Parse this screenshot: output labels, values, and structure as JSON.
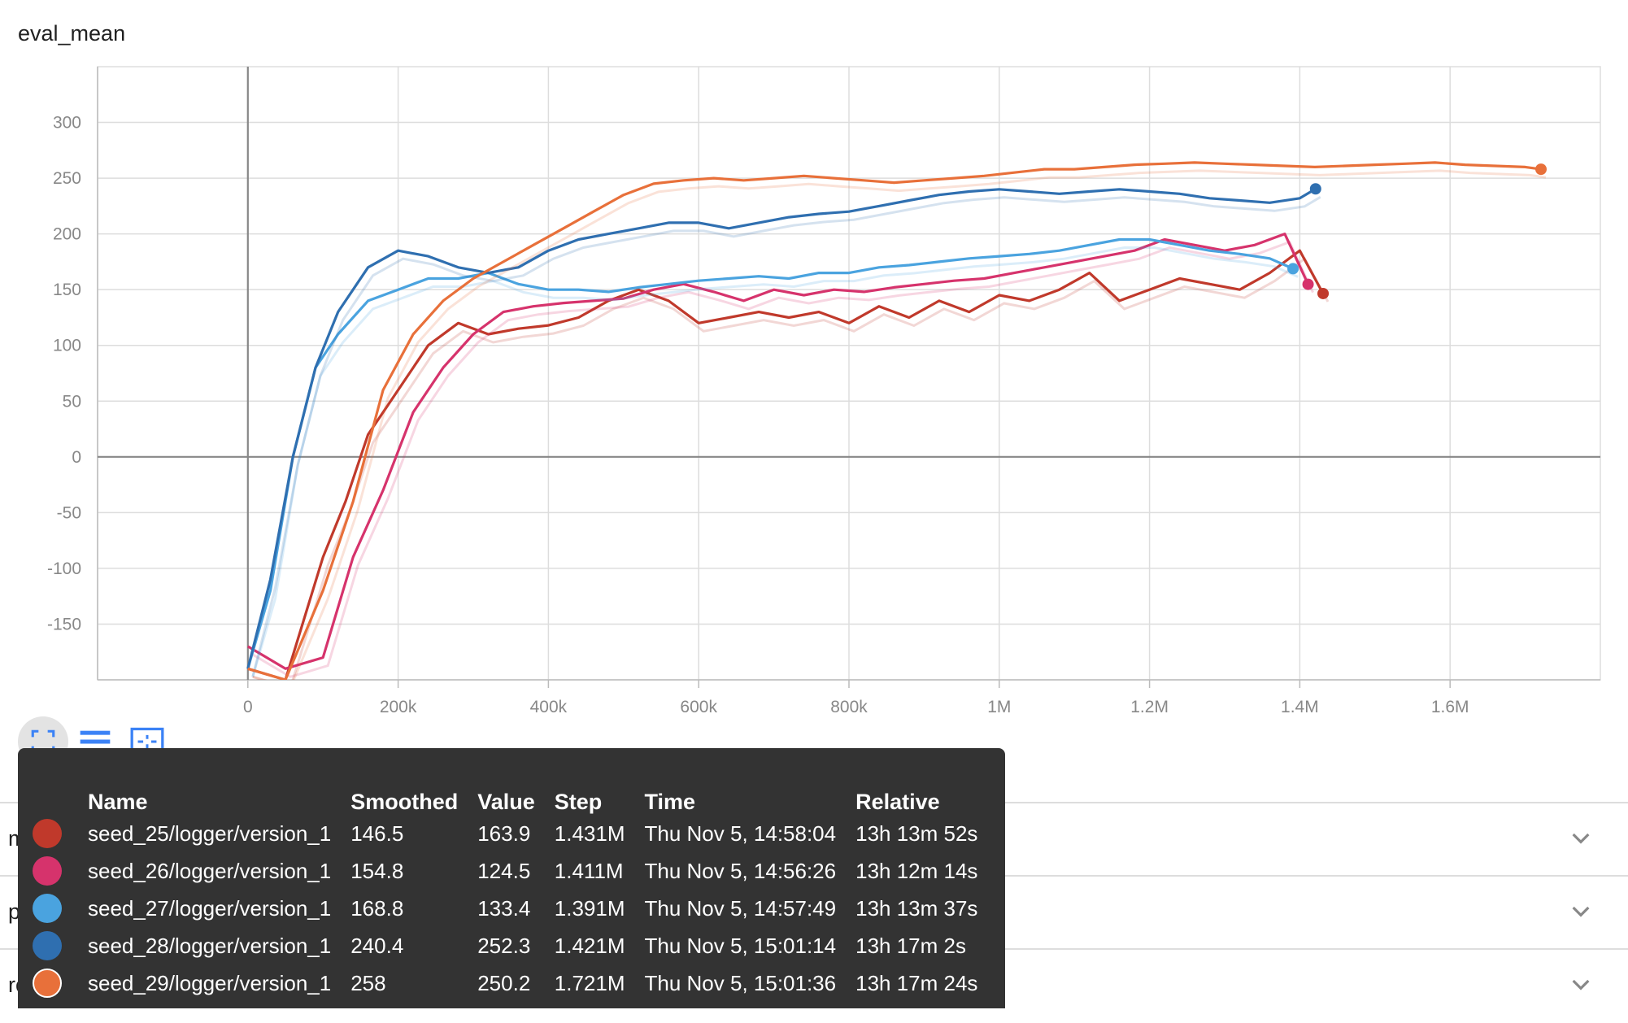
{
  "chart_data": {
    "type": "line",
    "title": "eval_mean",
    "xlabel": "",
    "ylabel": "",
    "xlim": [
      -200000,
      1800000
    ],
    "ylim": [
      -200,
      350
    ],
    "x_ticks": [
      0,
      200000,
      400000,
      600000,
      800000,
      1000000,
      1200000,
      1400000,
      1600000
    ],
    "x_tick_labels": [
      "0",
      "200k",
      "400k",
      "600k",
      "800k",
      "1M",
      "1.2M",
      "1.4M",
      "1.6M"
    ],
    "y_ticks": [
      -150,
      -100,
      -50,
      0,
      50,
      100,
      150,
      200,
      250,
      300
    ],
    "y_tick_labels": [
      "-150",
      "-100",
      "-50",
      "0",
      "50",
      "100",
      "150",
      "200",
      "250",
      "300"
    ],
    "grid": true,
    "series": [
      {
        "name": "seed_25/logger/version_1",
        "color": "#c0392b",
        "end_step": 1431000,
        "end_smoothed": 146.5,
        "x": [
          0,
          50000,
          100000,
          130000,
          160000,
          200000,
          240000,
          280000,
          320000,
          360000,
          400000,
          440000,
          480000,
          520000,
          560000,
          600000,
          640000,
          680000,
          720000,
          760000,
          800000,
          840000,
          880000,
          920000,
          960000,
          1000000,
          1040000,
          1080000,
          1120000,
          1160000,
          1200000,
          1240000,
          1280000,
          1320000,
          1360000,
          1400000,
          1431000
        ],
        "y": [
          -190,
          -200,
          -90,
          -40,
          20,
          60,
          100,
          120,
          110,
          115,
          118,
          125,
          140,
          150,
          140,
          120,
          125,
          130,
          125,
          130,
          120,
          135,
          125,
          140,
          130,
          145,
          140,
          150,
          165,
          140,
          150,
          160,
          155,
          150,
          165,
          185,
          146.5
        ]
      },
      {
        "name": "seed_26/logger/version_1",
        "color": "#d6336c",
        "end_step": 1411000,
        "end_smoothed": 154.8,
        "x": [
          0,
          50000,
          100000,
          140000,
          180000,
          220000,
          260000,
          300000,
          340000,
          380000,
          420000,
          460000,
          500000,
          540000,
          580000,
          620000,
          660000,
          700000,
          740000,
          780000,
          820000,
          860000,
          900000,
          940000,
          980000,
          1020000,
          1060000,
          1100000,
          1140000,
          1180000,
          1220000,
          1260000,
          1300000,
          1340000,
          1380000,
          1411000
        ],
        "y": [
          -170,
          -190,
          -180,
          -90,
          -30,
          40,
          80,
          110,
          130,
          135,
          138,
          140,
          142,
          150,
          155,
          148,
          140,
          150,
          145,
          150,
          148,
          152,
          155,
          158,
          160,
          165,
          170,
          175,
          180,
          185,
          195,
          190,
          185,
          190,
          200,
          154.8
        ]
      },
      {
        "name": "seed_27/logger/version_1",
        "color": "#4aa3df",
        "end_step": 1391000,
        "end_smoothed": 168.8,
        "x": [
          0,
          30000,
          60000,
          90000,
          120000,
          160000,
          200000,
          240000,
          280000,
          320000,
          360000,
          400000,
          440000,
          480000,
          520000,
          560000,
          600000,
          640000,
          680000,
          720000,
          760000,
          800000,
          840000,
          880000,
          920000,
          960000,
          1000000,
          1040000,
          1080000,
          1120000,
          1160000,
          1200000,
          1240000,
          1280000,
          1320000,
          1360000,
          1391000
        ],
        "y": [
          -190,
          -120,
          0,
          80,
          110,
          140,
          150,
          160,
          160,
          165,
          155,
          150,
          150,
          148,
          152,
          155,
          158,
          160,
          162,
          160,
          165,
          165,
          170,
          172,
          175,
          178,
          180,
          182,
          185,
          190,
          195,
          195,
          190,
          185,
          182,
          178,
          168.8
        ]
      },
      {
        "name": "seed_28/logger/version_1",
        "color": "#2f6fb0",
        "end_step": 1421000,
        "end_smoothed": 240.4,
        "x": [
          0,
          30000,
          60000,
          90000,
          120000,
          160000,
          200000,
          240000,
          280000,
          320000,
          360000,
          400000,
          440000,
          480000,
          520000,
          560000,
          600000,
          640000,
          680000,
          720000,
          760000,
          800000,
          840000,
          880000,
          920000,
          960000,
          1000000,
          1040000,
          1080000,
          1120000,
          1160000,
          1200000,
          1240000,
          1280000,
          1320000,
          1360000,
          1400000,
          1421000
        ],
        "y": [
          -190,
          -110,
          0,
          80,
          130,
          170,
          185,
          180,
          170,
          165,
          170,
          185,
          195,
          200,
          205,
          210,
          210,
          205,
          210,
          215,
          218,
          220,
          225,
          230,
          235,
          238,
          240,
          238,
          236,
          238,
          240,
          238,
          236,
          232,
          230,
          228,
          232,
          240.4
        ]
      },
      {
        "name": "seed_29/logger/version_1",
        "color": "#e8703a",
        "end_step": 1721000,
        "end_smoothed": 258,
        "x": [
          0,
          50000,
          100000,
          140000,
          180000,
          220000,
          260000,
          300000,
          340000,
          380000,
          420000,
          460000,
          500000,
          540000,
          580000,
          620000,
          660000,
          700000,
          740000,
          780000,
          820000,
          860000,
          900000,
          940000,
          980000,
          1020000,
          1060000,
          1100000,
          1140000,
          1180000,
          1220000,
          1260000,
          1300000,
          1340000,
          1380000,
          1420000,
          1460000,
          1500000,
          1540000,
          1580000,
          1620000,
          1660000,
          1700000,
          1721000
        ],
        "y": [
          -190,
          -200,
          -120,
          -40,
          60,
          110,
          140,
          160,
          175,
          190,
          205,
          220,
          235,
          245,
          248,
          250,
          248,
          250,
          252,
          250,
          248,
          246,
          248,
          250,
          252,
          255,
          258,
          258,
          260,
          262,
          263,
          264,
          263,
          262,
          261,
          260,
          261,
          262,
          263,
          264,
          262,
          261,
          260,
          258
        ]
      }
    ]
  },
  "toolbar": {
    "fullscreen_icon": "fullscreen-icon",
    "list_icon": "list-icon",
    "fit_domain_icon": "fit-domain-icon"
  },
  "tooltip": {
    "headers": {
      "name": "Name",
      "smoothed": "Smoothed",
      "value": "Value",
      "step": "Step",
      "time": "Time",
      "relative": "Relative"
    },
    "rows": [
      {
        "name": "seed_25/logger/version_1",
        "smoothed": "146.5",
        "value": "163.9",
        "step": "1.431M",
        "time": "Thu Nov 5, 14:58:04",
        "relative": "13h 13m 52s",
        "color": "#c0392b"
      },
      {
        "name": "seed_26/logger/version_1",
        "smoothed": "154.8",
        "value": "124.5",
        "step": "1.411M",
        "time": "Thu Nov 5, 14:56:26",
        "relative": "13h 12m 14s",
        "color": "#d6336c"
      },
      {
        "name": "seed_27/logger/version_1",
        "smoothed": "168.8",
        "value": "133.4",
        "step": "1.391M",
        "time": "Thu Nov 5, 14:57:49",
        "relative": "13h 13m 37s",
        "color": "#4aa3df"
      },
      {
        "name": "seed_28/logger/version_1",
        "smoothed": "240.4",
        "value": "252.3",
        "step": "1.421M",
        "time": "Thu Nov 5, 15:01:14",
        "relative": "13h 17m 2s",
        "color": "#2f6fb0"
      },
      {
        "name": "seed_29/logger/version_1",
        "smoothed": "258",
        "value": "250.2",
        "step": "1.721M",
        "time": "Thu Nov 5, 15:01:36",
        "relative": "13h 17m 24s",
        "color": "#e8703a"
      }
    ]
  },
  "sections": [
    {
      "label": "mean_reward"
    },
    {
      "label": "policy_loss"
    },
    {
      "label": "rollout_stats"
    }
  ]
}
